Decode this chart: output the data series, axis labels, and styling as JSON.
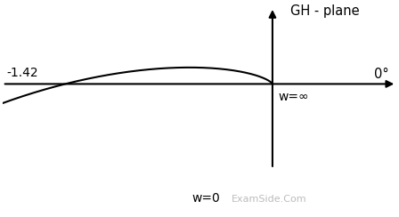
{
  "title_label": "GH - plane",
  "angle_label": "0°",
  "w_inf_label": "w=∞",
  "w_zero_label": "w=0",
  "real_cross_label": "-1.42",
  "watermark": "ExamSide.Com",
  "background_color": "#ffffff",
  "curve_color": "#000000",
  "axis_color": "#000000",
  "xlim": [
    -1.85,
    0.85
  ],
  "ylim": [
    -1.75,
    1.05
  ],
  "real_crossing": -1.42,
  "K": 1.0,
  "a": 1.0,
  "b": 1.0,
  "c": 1.0
}
